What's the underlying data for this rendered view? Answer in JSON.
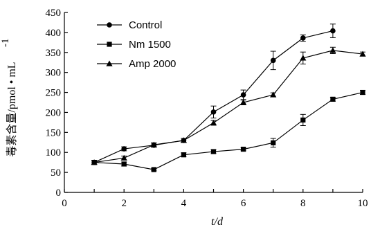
{
  "chart_data": {
    "type": "line",
    "xlabel": "t/d",
    "ylabel": "毒素含量/pmol • mL",
    "ylabel_superscript": "-1",
    "xlim": [
      0,
      10
    ],
    "ylim": [
      0,
      450
    ],
    "x_ticks": [
      "0",
      "2",
      "4",
      "6",
      "8",
      "10"
    ],
    "y_ticks": [
      "0",
      "50",
      "100",
      "150",
      "200",
      "250",
      "300",
      "350",
      "400",
      "450"
    ],
    "grid": false,
    "legend_position": "top-left",
    "series": [
      {
        "name": "Control",
        "marker": "circle",
        "x": [
          1,
          2,
          3,
          4,
          5,
          6,
          7,
          8,
          9
        ],
        "y": [
          75,
          109,
          118,
          130,
          201,
          244,
          330,
          386,
          404
        ],
        "error": [
          5,
          5,
          5,
          5,
          15,
          12,
          23,
          8,
          17
        ]
      },
      {
        "name": "Nm 1500",
        "marker": "square",
        "x": [
          1,
          2,
          3,
          4,
          5,
          6,
          7,
          8,
          9,
          10
        ],
        "y": [
          75,
          71,
          57,
          94,
          102,
          108,
          124,
          181,
          233,
          250
        ],
        "error": [
          5,
          5,
          3,
          5,
          5,
          4,
          11,
          14,
          5,
          5
        ]
      },
      {
        "name": "Amp 2000",
        "marker": "triangle",
        "x": [
          1,
          2,
          3,
          4,
          5,
          6,
          7,
          8,
          9,
          10
        ],
        "y": [
          75,
          86,
          119,
          130,
          174,
          225,
          244,
          336,
          355,
          346
        ],
        "error": [
          5,
          5,
          5,
          5,
          6,
          6,
          5,
          15,
          8,
          5
        ]
      }
    ]
  }
}
